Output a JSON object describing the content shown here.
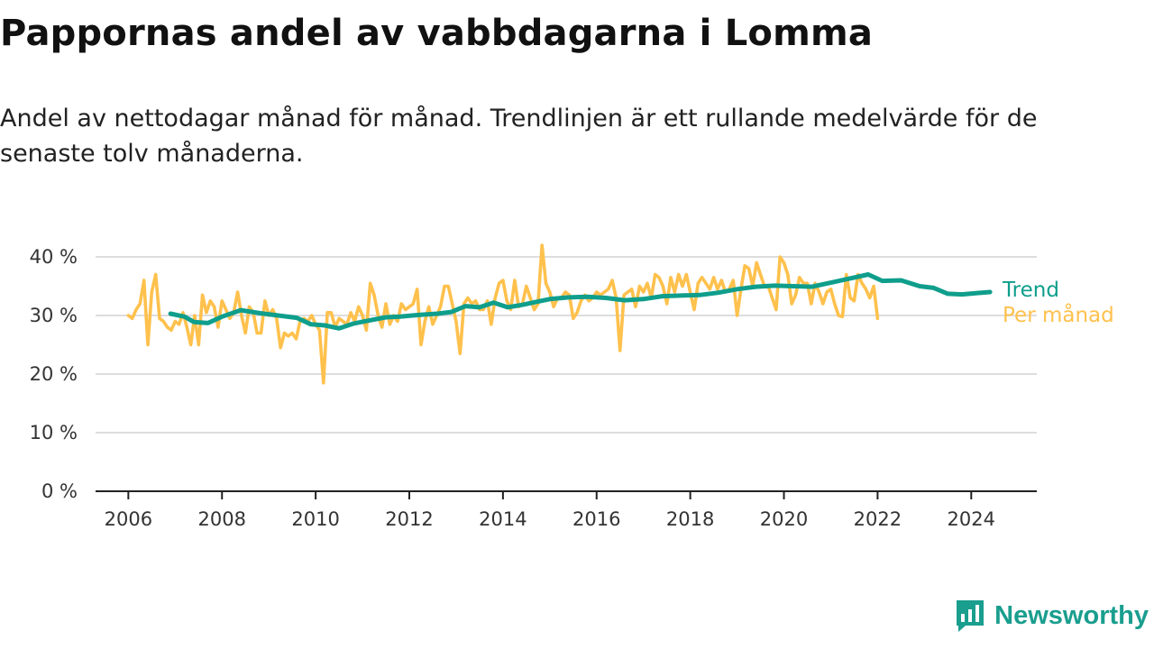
{
  "header": {
    "title": "Pappornas andel av vabbdagarna i Lomma",
    "subtitle": "Andel av nettodagar månad för månad. Trendlinjen är ett rullande medelvärde för de senaste tolv månaderna."
  },
  "brand": {
    "name": "Newsworthy",
    "icon": "newsworthy-logo-icon",
    "color": "#1a9e8e"
  },
  "colors": {
    "monthly": "#ffc14d",
    "trend": "#0f9e8c",
    "grid": "#dddddd",
    "axis": "#222222"
  },
  "chart_data": {
    "type": "line",
    "x_unit": "year",
    "xlim": [
      2005.3,
      2025.4
    ],
    "ylim": [
      0,
      40
    ],
    "y_ticks": [
      0,
      10,
      20,
      30,
      40
    ],
    "y_tick_labels": [
      "0 %",
      "10 %",
      "20 %",
      "30 %",
      "40 %"
    ],
    "x_ticks": [
      2006,
      2008,
      2010,
      2012,
      2014,
      2016,
      2018,
      2020,
      2022,
      2024
    ],
    "x_tick_labels": [
      "2006",
      "2008",
      "2010",
      "2012",
      "2014",
      "2016",
      "2018",
      "2020",
      "2022",
      "2024"
    ],
    "grid": true,
    "legend": "inline-right",
    "series": [
      {
        "name": "Per månad",
        "color": "#ffc14d",
        "start": 2006.0,
        "step": 0.083333,
        "values": [
          30.0,
          29.5,
          31.0,
          32.0,
          36.0,
          25.0,
          34.0,
          37.0,
          29.5,
          29.0,
          28.0,
          27.5,
          29.0,
          28.5,
          30.5,
          28.0,
          25.0,
          30.0,
          25.0,
          33.5,
          30.5,
          32.5,
          31.5,
          28.0,
          32.5,
          31.0,
          29.5,
          30.5,
          34.0,
          30.0,
          27.0,
          31.5,
          30.5,
          27.0,
          27.0,
          32.5,
          30.0,
          31.0,
          29.5,
          24.5,
          27.0,
          26.5,
          27.0,
          26.0,
          29.0,
          29.5,
          29.0,
          30.0,
          28.5,
          27.5,
          18.5,
          30.5,
          30.5,
          28.0,
          29.5,
          29.0,
          28.5,
          30.5,
          29.0,
          31.5,
          30.0,
          27.5,
          35.5,
          33.5,
          30.0,
          28.0,
          32.0,
          28.5,
          30.0,
          29.0,
          32.0,
          31.0,
          31.5,
          32.0,
          34.5,
          25.0,
          29.0,
          31.5,
          28.5,
          30.0,
          31.5,
          35.0,
          35.0,
          32.0,
          29.0,
          23.5,
          32.0,
          33.0,
          32.0,
          32.5,
          31.0,
          31.0,
          32.5,
          28.5,
          33.0,
          35.5,
          36.0,
          32.5,
          31.0,
          36.0,
          31.5,
          32.0,
          35.0,
          33.0,
          31.0,
          32.0,
          42.0,
          35.5,
          34.0,
          31.5,
          33.0,
          33.0,
          34.0,
          33.5,
          29.5,
          30.5,
          32.5,
          33.5,
          32.5,
          33.0,
          34.0,
          33.5,
          34.0,
          34.5,
          36.0,
          33.0,
          24.0,
          33.5,
          34.0,
          34.5,
          31.5,
          35.0,
          34.0,
          35.5,
          33.0,
          37.0,
          36.5,
          35.0,
          32.0,
          36.5,
          34.0,
          37.0,
          35.0,
          37.0,
          34.0,
          31.0,
          35.5,
          36.5,
          35.5,
          34.5,
          36.5,
          34.5,
          36.0,
          34.0,
          34.5,
          36.0,
          30.0,
          34.5,
          38.5,
          38.0,
          35.0,
          39.0,
          37.0,
          35.0,
          35.0,
          33.0,
          31.0,
          40.0,
          39.0,
          37.0,
          32.0,
          33.5,
          36.5,
          35.5,
          35.5,
          32.0,
          35.5,
          34.0,
          32.0,
          34.0,
          34.5,
          32.0,
          30.0,
          29.8,
          37.0,
          33.0,
          32.5,
          37.0,
          35.5,
          34.5,
          33.0,
          35.0,
          29.5
        ]
      },
      {
        "name": "Trend",
        "color": "#0f9e8c",
        "x": [
          2006.9,
          2007.2,
          2007.4,
          2007.7,
          2008.0,
          2008.4,
          2008.8,
          2009.2,
          2009.6,
          2009.9,
          2010.2,
          2010.5,
          2010.8,
          2011.1,
          2011.5,
          2011.8,
          2012.2,
          2012.6,
          2012.9,
          2013.2,
          2013.5,
          2013.8,
          2014.1,
          2014.4,
          2014.7,
          2015.0,
          2015.4,
          2015.8,
          2016.2,
          2016.6,
          2017.0,
          2017.4,
          2017.8,
          2018.2,
          2018.6,
          2019.0,
          2019.4,
          2019.8,
          2020.2,
          2020.6,
          2021.0,
          2021.4,
          2021.8,
          2022.1,
          2022.5,
          2022.9,
          2023.2,
          2023.5,
          2023.8,
          2024.1,
          2024.4
        ],
        "values": [
          30.3,
          29.8,
          28.9,
          28.7,
          29.8,
          30.9,
          30.4,
          30.0,
          29.6,
          28.5,
          28.3,
          27.8,
          28.6,
          29.1,
          29.7,
          29.8,
          30.1,
          30.3,
          30.6,
          31.6,
          31.4,
          32.2,
          31.4,
          31.8,
          32.3,
          32.8,
          33.1,
          33.2,
          33.0,
          32.6,
          32.8,
          33.3,
          33.4,
          33.5,
          33.9,
          34.5,
          34.9,
          35.1,
          35.0,
          34.9,
          35.6,
          36.3,
          37.0,
          35.9,
          36.0,
          35.0,
          34.7,
          33.7,
          33.6,
          33.8,
          34.0
        ]
      }
    ]
  }
}
